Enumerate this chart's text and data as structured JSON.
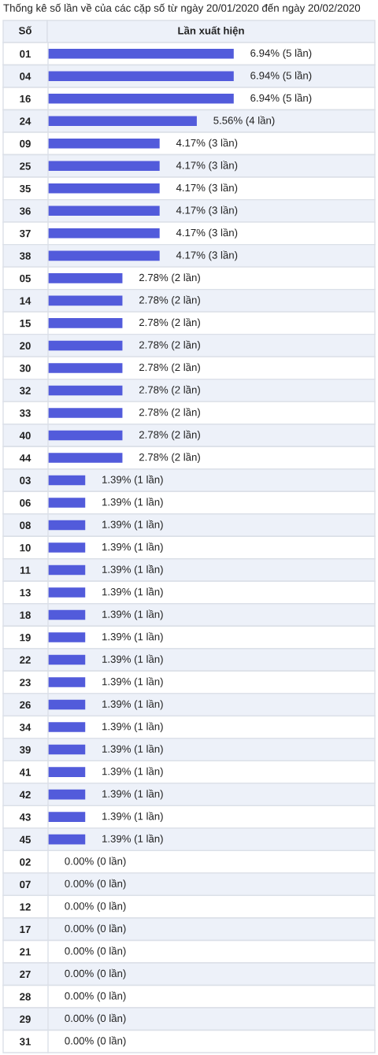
{
  "chart_data": {
    "type": "bar",
    "orientation": "horizontal",
    "tick_labels": "y",
    "title": "Thống kê số lần về của các cặp số từ ngày 20/01/2020 đến ngày 20/02/2020",
    "ylabel": "Số",
    "xlabel": "Lần xuất hiện",
    "color": "#525bdb",
    "categories": [
      "01",
      "04",
      "16",
      "24",
      "09",
      "25",
      "35",
      "36",
      "37",
      "38",
      "05",
      "14",
      "15",
      "20",
      "30",
      "32",
      "33",
      "40",
      "44",
      "03",
      "06",
      "08",
      "10",
      "11",
      "13",
      "18",
      "19",
      "22",
      "23",
      "26",
      "34",
      "39",
      "41",
      "42",
      "43",
      "45",
      "02",
      "07",
      "12",
      "17",
      "21",
      "27",
      "28",
      "29",
      "31"
    ],
    "values": [
      6.94,
      6.94,
      6.94,
      5.56,
      4.17,
      4.17,
      4.17,
      4.17,
      4.17,
      4.17,
      2.78,
      2.78,
      2.78,
      2.78,
      2.78,
      2.78,
      2.78,
      2.78,
      2.78,
      1.39,
      1.39,
      1.39,
      1.39,
      1.39,
      1.39,
      1.39,
      1.39,
      1.39,
      1.39,
      1.39,
      1.39,
      1.39,
      1.39,
      1.39,
      1.39,
      1.39,
      0.0,
      0.0,
      0.0,
      0.0,
      0.0,
      0.0,
      0.0,
      0.0,
      0.0
    ],
    "value_labels": [
      "6.94% (5 lần)",
      "6.94% (5 lần)",
      "6.94% (5 lần)",
      "5.56% (4 lần)",
      "4.17% (3 lần)",
      "4.17% (3 lần)",
      "4.17% (3 lần)",
      "4.17% (3 lần)",
      "4.17% (3 lần)",
      "4.17% (3 lần)",
      "2.78% (2 lần)",
      "2.78% (2 lần)",
      "2.78% (2 lần)",
      "2.78% (2 lần)",
      "2.78% (2 lần)",
      "2.78% (2 lần)",
      "2.78% (2 lần)",
      "2.78% (2 lần)",
      "2.78% (2 lần)",
      "1.39% (1 lần)",
      "1.39% (1 lần)",
      "1.39% (1 lần)",
      "1.39% (1 lần)",
      "1.39% (1 lần)",
      "1.39% (1 lần)",
      "1.39% (1 lần)",
      "1.39% (1 lần)",
      "1.39% (1 lần)",
      "1.39% (1 lần)",
      "1.39% (1 lần)",
      "1.39% (1 lần)",
      "1.39% (1 lần)",
      "1.39% (1 lần)",
      "1.39% (1 lần)",
      "1.39% (1 lần)",
      "1.39% (1 lần)",
      "0.00% (0 lần)",
      "0.00% (0 lần)",
      "0.00% (0 lần)",
      "0.00% (0 lần)",
      "0.00% (0 lần)",
      "0.00% (0 lần)",
      "0.00% (0 lần)",
      "0.00% (0 lần)",
      "0.00% (0 lần)"
    ]
  }
}
